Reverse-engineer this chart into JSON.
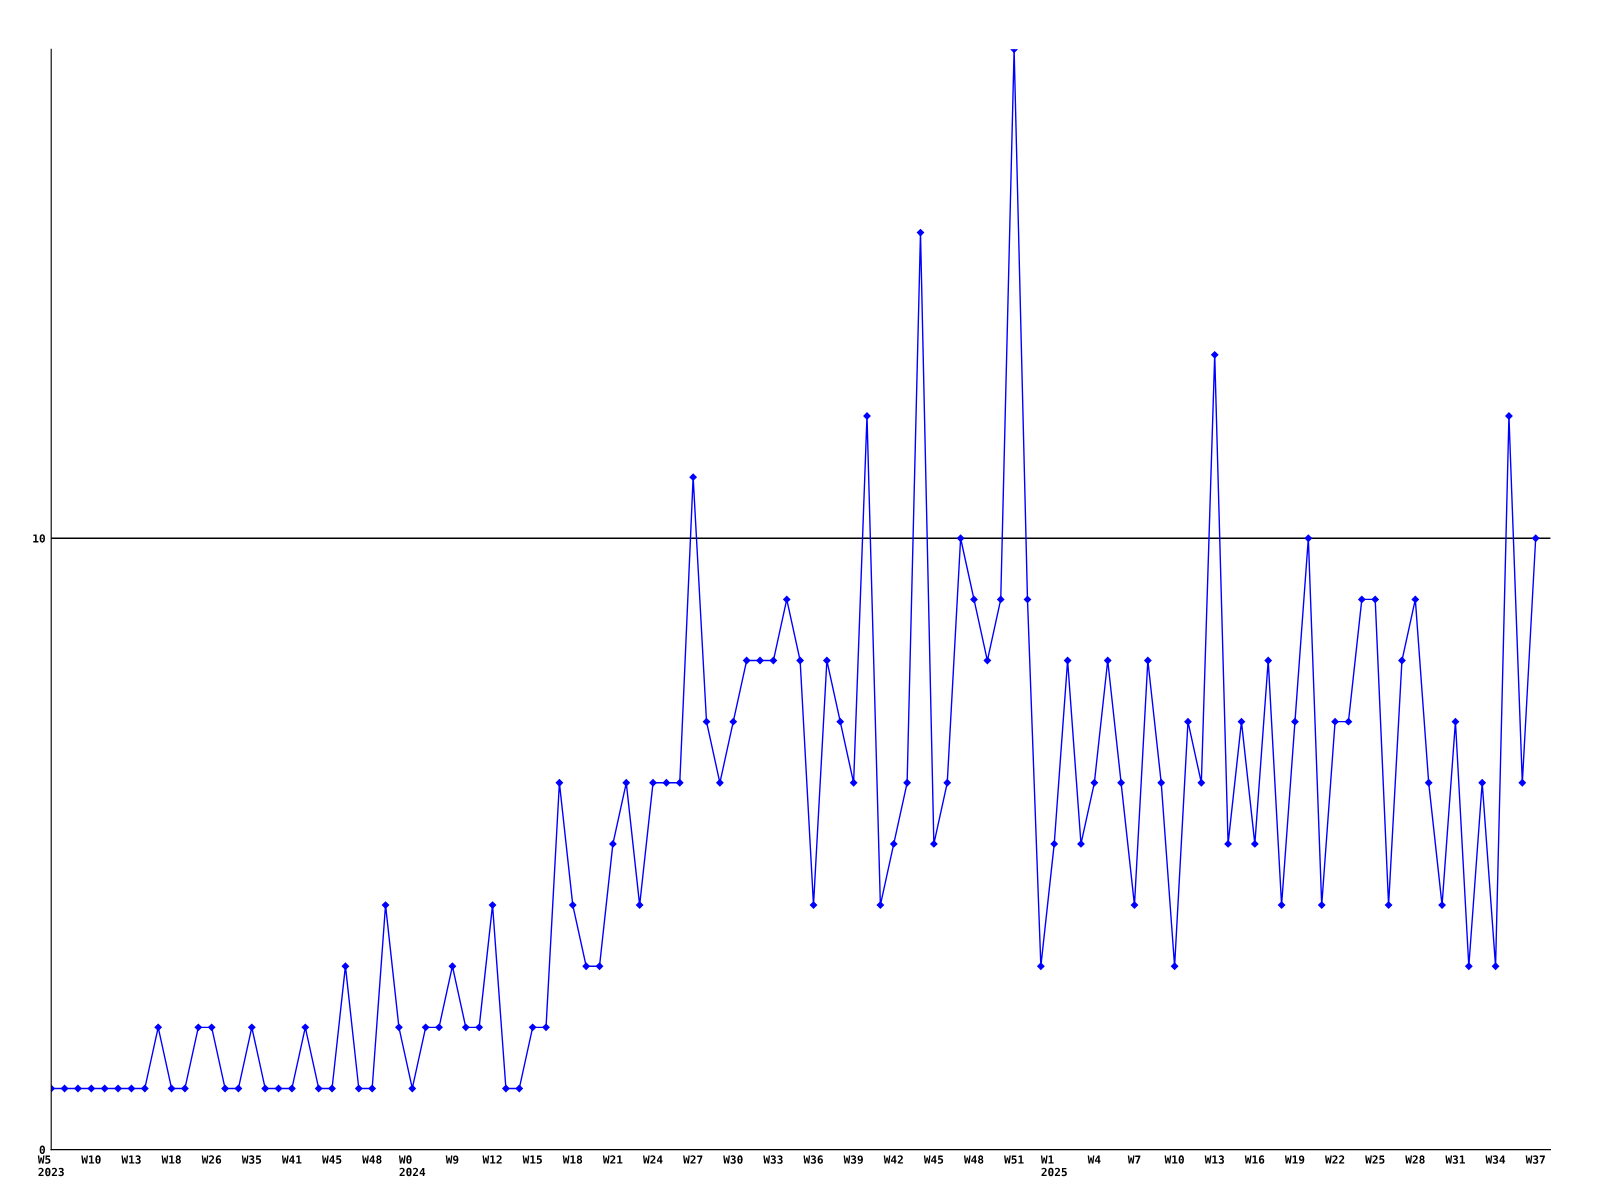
{
  "chart_data": {
    "type": "line",
    "categories": [
      "W5\n2023",
      null,
      null,
      "W10",
      null,
      null,
      "W13",
      null,
      null,
      "W18",
      null,
      null,
      "W26",
      null,
      null,
      "W35",
      null,
      null,
      "W41",
      null,
      null,
      "W45",
      null,
      null,
      "W48",
      null,
      null,
      "W0\n2024",
      null,
      null,
      "W9",
      null,
      null,
      "W12",
      null,
      null,
      "W15",
      null,
      null,
      "W18",
      null,
      null,
      "W21",
      null,
      null,
      "W24",
      null,
      null,
      "W27",
      null,
      null,
      "W30",
      null,
      null,
      "W33",
      null,
      null,
      "W36",
      null,
      null,
      "W39",
      null,
      null,
      "W42",
      null,
      null,
      "W45",
      null,
      null,
      "W48",
      null,
      null,
      "W51",
      null,
      null,
      "W1\n2025",
      null,
      null,
      "W4",
      null,
      null,
      "W7",
      null,
      null,
      "W10",
      null,
      null,
      "W13",
      null,
      null,
      "W16",
      null,
      null,
      "W19",
      null,
      null,
      "W22",
      null,
      null,
      "W25",
      null,
      null,
      "W28",
      null,
      null,
      "W31",
      null,
      null,
      "W34",
      null,
      null,
      "W37"
    ],
    "series": [
      {
        "color": "#0000ff",
        "values": [
          1,
          1,
          1,
          1,
          1,
          1,
          1,
          1,
          2,
          1,
          1,
          2,
          2,
          1,
          1,
          2,
          1,
          1,
          1,
          2,
          1,
          1,
          3,
          1,
          1,
          4,
          2,
          1,
          2,
          2,
          3,
          2,
          2,
          4,
          1,
          1,
          2,
          2,
          6,
          4,
          3,
          3,
          5,
          6,
          4,
          6,
          6,
          6,
          11,
          7,
          6,
          7,
          8,
          8,
          8,
          9,
          8,
          4,
          8,
          7,
          6,
          12,
          4,
          5,
          6,
          15,
          5,
          6,
          10,
          9,
          8,
          9,
          18,
          9,
          3,
          5,
          8,
          5,
          6,
          8,
          6,
          4,
          8,
          6,
          3,
          7,
          6,
          13,
          5,
          7,
          5,
          8,
          4,
          7,
          10,
          4,
          7,
          7,
          9,
          9,
          4,
          8,
          9,
          6,
          4,
          7,
          3,
          6,
          3,
          12,
          6,
          10
        ]
      }
    ],
    "ylim": [
      0,
      18
    ],
    "yticks": [
      0,
      10
    ],
    "grid": "y",
    "marker": "diamond",
    "line_style": "solid"
  }
}
